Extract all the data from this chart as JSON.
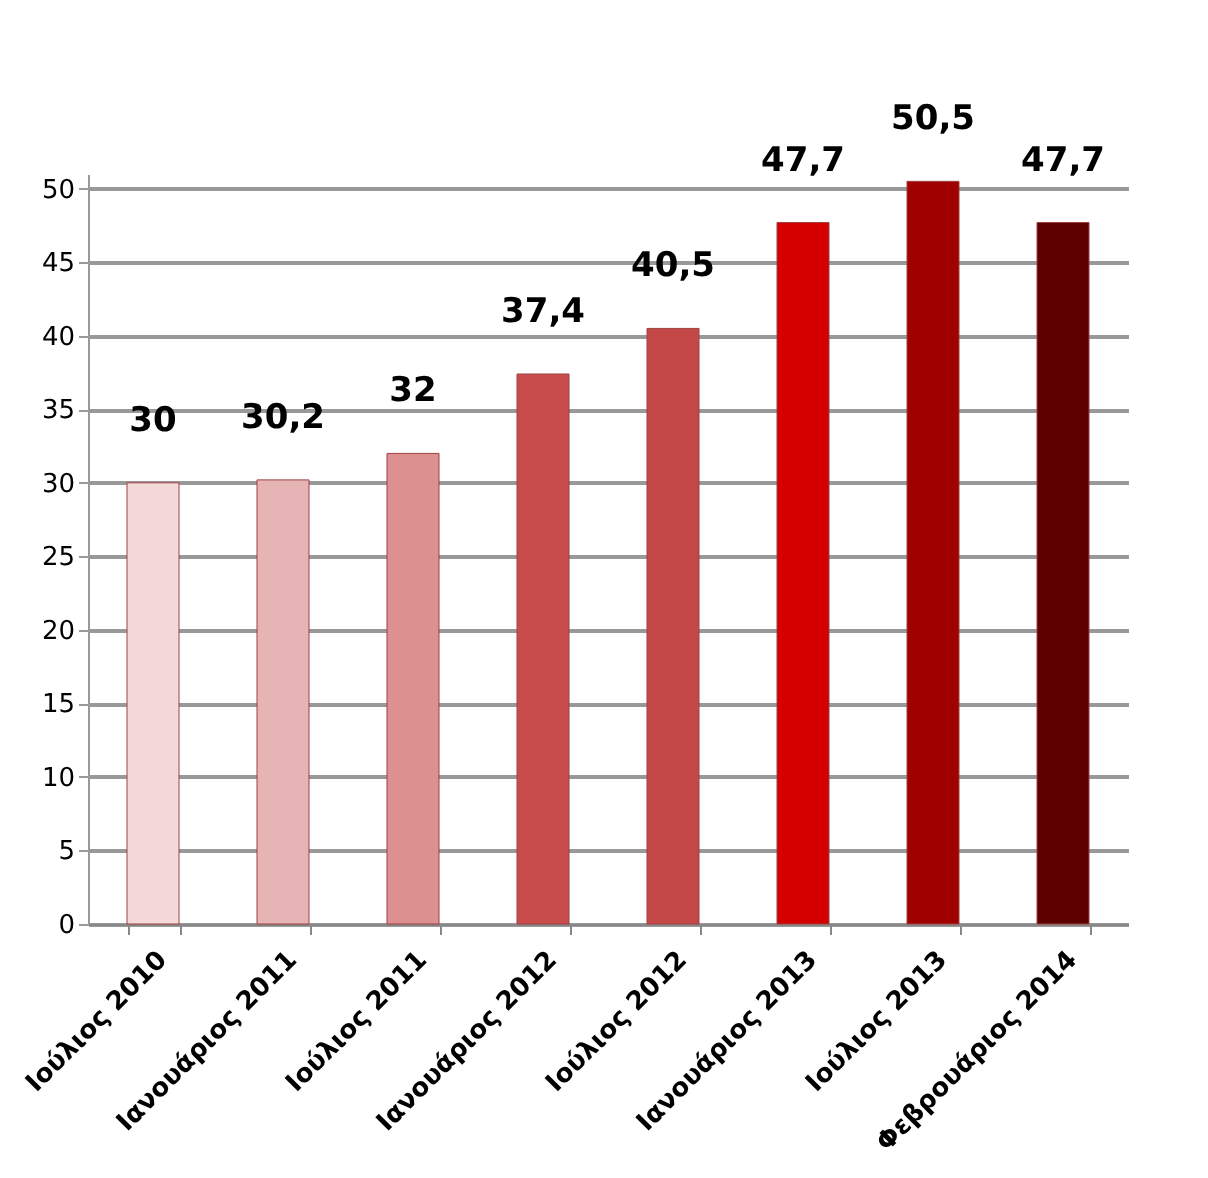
{
  "chart_data": {
    "type": "bar",
    "categories": [
      "Ιούλιος 2010",
      "Ιανουάριος 2011",
      "Ιούλιος 2011",
      "Ιανουάριος 2012",
      "Ιούλιος 2012",
      "Ιανουάριος 2013",
      "Ιούλιος 2013",
      "Φεβρουάριος 2014"
    ],
    "values": [
      30,
      30.2,
      32,
      37.4,
      40.5,
      47.7,
      50.5,
      47.7
    ],
    "value_labels": [
      "30",
      "30,2",
      "32",
      "37,4",
      "40,5",
      "47,7",
      "50,5",
      "47,7"
    ],
    "colors": [
      "#f4d9d9",
      "#e6b4b4",
      "#dc9090",
      "#c84c4c",
      "#c44848",
      "#d40000",
      "#a00000",
      "#5c0000"
    ],
    "ylim": [
      0,
      51
    ],
    "yticks": [
      0,
      5,
      10,
      15,
      20,
      25,
      30,
      35,
      40,
      45,
      50
    ],
    "grid": "y"
  }
}
